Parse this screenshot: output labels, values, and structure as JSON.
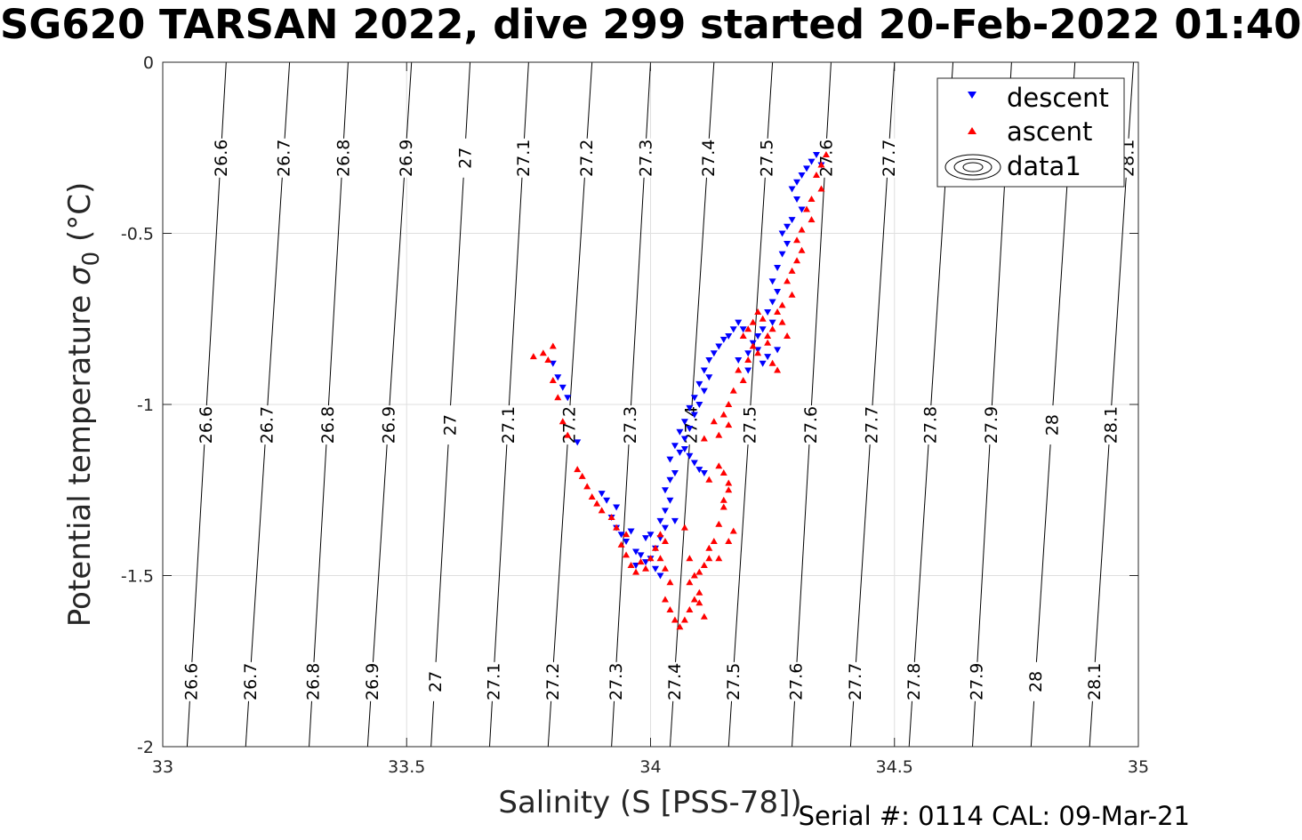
{
  "chart_data": {
    "type": "scatter",
    "title": "SG620 TARSAN 2022, dive 299 started 20-Feb-2022 01:40",
    "xlabel": "Salinity (S [PSS-78])",
    "ylabel": "Potential temperature",
    "ylabel_symbol": "σ",
    "ylabel_subscript": "0",
    "ylabel_unit": "(°C)",
    "footer": "Serial #: 0114  CAL: 09-Mar-21",
    "xlim": [
      33,
      35
    ],
    "ylim": [
      -2,
      0
    ],
    "xticks": [
      33,
      33.5,
      34,
      34.5,
      35
    ],
    "xtick_labels": [
      "33",
      "33.5",
      "34",
      "34.5",
      "35"
    ],
    "yticks": [
      0,
      -0.5,
      -1,
      -1.5,
      -2
    ],
    "ytick_labels": [
      "0",
      "-0.5",
      "-1",
      "-1.5",
      "-2"
    ],
    "grid": true,
    "legend": {
      "placement": "top-right",
      "entries": [
        {
          "label": "descent",
          "marker": "triangle-down",
          "color": "#0000ff"
        },
        {
          "label": "ascent",
          "marker": "triangle-up",
          "color": "#ff0000"
        },
        {
          "label": "data1",
          "marker": "contour",
          "color": "#000000"
        }
      ]
    },
    "density_contours": {
      "levels": [
        "26.6",
        "26.7",
        "26.8",
        "26.9",
        "27",
        "27.1",
        "27.2",
        "27.3",
        "27.4",
        "27.5",
        "27.6",
        "27.7",
        "27.8",
        "27.9",
        "28",
        "28.1"
      ],
      "bottom_x": [
        33.05,
        33.17,
        33.3,
        33.42,
        33.55,
        33.67,
        33.79,
        33.92,
        34.04,
        34.16,
        34.29,
        34.41,
        34.53,
        34.66,
        34.78,
        34.9
      ],
      "top_x": [
        33.13,
        33.26,
        33.38,
        33.51,
        33.63,
        33.75,
        33.88,
        34.0,
        34.13,
        34.25,
        34.37,
        34.5,
        34.62,
        34.74,
        34.87,
        34.99
      ],
      "label_rows_y": [
        -0.28,
        -1.06,
        -1.81
      ],
      "top_row_levels": [
        "26.6",
        "26.7",
        "26.8",
        "26.9",
        "27",
        "27.1",
        "27.2",
        "27.3",
        "27.4",
        "27.5",
        "27.6",
        "27.7",
        "28.1"
      ]
    },
    "series": [
      {
        "name": "descent",
        "color": "#0000ff",
        "marker": "triangle-down",
        "points": [
          [
            34.34,
            -0.27
          ],
          [
            34.33,
            -0.29
          ],
          [
            34.32,
            -0.31
          ],
          [
            34.31,
            -0.33
          ],
          [
            34.35,
            -0.3
          ],
          [
            34.3,
            -0.35
          ],
          [
            34.29,
            -0.37
          ],
          [
            34.3,
            -0.4
          ],
          [
            34.31,
            -0.43
          ],
          [
            34.29,
            -0.46
          ],
          [
            34.28,
            -0.48
          ],
          [
            34.27,
            -0.5
          ],
          [
            34.28,
            -0.53
          ],
          [
            34.27,
            -0.56
          ],
          [
            34.26,
            -0.6
          ],
          [
            34.25,
            -0.64
          ],
          [
            34.26,
            -0.67
          ],
          [
            34.25,
            -0.7
          ],
          [
            34.24,
            -0.73
          ],
          [
            34.25,
            -0.76
          ],
          [
            34.23,
            -0.78
          ],
          [
            34.22,
            -0.8
          ],
          [
            34.21,
            -0.82
          ],
          [
            34.22,
            -0.84
          ],
          [
            34.2,
            -0.85
          ],
          [
            34.19,
            -0.78
          ],
          [
            34.18,
            -0.76
          ],
          [
            34.17,
            -0.78
          ],
          [
            34.16,
            -0.8
          ],
          [
            34.15,
            -0.81
          ],
          [
            34.14,
            -0.83
          ],
          [
            34.13,
            -0.85
          ],
          [
            34.12,
            -0.87
          ],
          [
            34.11,
            -0.9
          ],
          [
            34.12,
            -0.92
          ],
          [
            34.1,
            -0.94
          ],
          [
            34.11,
            -0.96
          ],
          [
            34.09,
            -0.98
          ],
          [
            34.1,
            -1.0
          ],
          [
            34.08,
            -1.01
          ],
          [
            34.09,
            -1.03
          ],
          [
            34.07,
            -1.05
          ],
          [
            34.08,
            -1.07
          ],
          [
            34.06,
            -1.08
          ],
          [
            34.07,
            -1.1
          ],
          [
            34.05,
            -1.12
          ],
          [
            34.06,
            -1.14
          ],
          [
            34.04,
            -1.16
          ],
          [
            34.05,
            -1.2
          ],
          [
            34.04,
            -1.22
          ],
          [
            34.03,
            -1.25
          ],
          [
            34.04,
            -1.28
          ],
          [
            34.03,
            -1.31
          ],
          [
            34.02,
            -1.34
          ],
          [
            34.03,
            -1.36
          ],
          [
            34.02,
            -1.39
          ],
          [
            34.01,
            -1.42
          ],
          [
            34.0,
            -1.45
          ],
          [
            34.01,
            -1.48
          ],
          [
            34.02,
            -1.5
          ],
          [
            33.99,
            -1.46
          ],
          [
            33.97,
            -1.43
          ],
          [
            33.95,
            -1.4
          ],
          [
            33.96,
            -1.37
          ],
          [
            33.94,
            -1.38
          ],
          [
            33.93,
            -1.36
          ],
          [
            33.92,
            -1.33
          ],
          [
            33.93,
            -1.3
          ],
          [
            33.91,
            -1.28
          ],
          [
            33.9,
            -1.26
          ],
          [
            33.85,
            -1.11
          ],
          [
            33.83,
            -0.98
          ],
          [
            33.82,
            -0.95
          ],
          [
            33.81,
            -0.92
          ],
          [
            33.8,
            -0.88
          ],
          [
            34.07,
            -1.13
          ],
          [
            34.08,
            -1.15
          ],
          [
            34.09,
            -1.17
          ],
          [
            34.1,
            -1.19
          ],
          [
            34.11,
            -1.2
          ],
          [
            34.18,
            -0.87
          ],
          [
            34.2,
            -0.9
          ],
          [
            34.23,
            -0.88
          ],
          [
            34.24,
            -0.86
          ],
          [
            34.26,
            -0.84
          ],
          [
            33.99,
            -1.39
          ],
          [
            33.98,
            -1.44
          ],
          [
            33.97,
            -1.47
          ],
          [
            34.0,
            -1.38
          ],
          [
            34.05,
            -1.34
          ]
        ]
      },
      {
        "name": "ascent",
        "color": "#ff0000",
        "marker": "triangle-up",
        "points": [
          [
            34.36,
            -0.27
          ],
          [
            34.35,
            -0.3
          ],
          [
            34.34,
            -0.33
          ],
          [
            34.35,
            -0.37
          ],
          [
            34.33,
            -0.4
          ],
          [
            34.32,
            -0.43
          ],
          [
            34.33,
            -0.46
          ],
          [
            34.31,
            -0.49
          ],
          [
            34.3,
            -0.52
          ],
          [
            34.31,
            -0.55
          ],
          [
            34.3,
            -0.58
          ],
          [
            34.29,
            -0.61
          ],
          [
            34.28,
            -0.64
          ],
          [
            34.29,
            -0.68
          ],
          [
            34.27,
            -0.71
          ],
          [
            34.26,
            -0.73
          ],
          [
            34.27,
            -0.76
          ],
          [
            34.25,
            -0.78
          ],
          [
            34.24,
            -0.8
          ],
          [
            34.23,
            -0.75
          ],
          [
            34.22,
            -0.73
          ],
          [
            34.21,
            -0.76
          ],
          [
            34.2,
            -0.78
          ],
          [
            34.19,
            -0.8
          ],
          [
            34.21,
            -0.83
          ],
          [
            34.2,
            -0.87
          ],
          [
            34.18,
            -0.9
          ],
          [
            34.19,
            -0.93
          ],
          [
            34.17,
            -0.96
          ],
          [
            34.16,
            -1.0
          ],
          [
            34.15,
            -1.03
          ],
          [
            34.16,
            -1.06
          ],
          [
            34.14,
            -1.09
          ],
          [
            34.15,
            -1.2
          ],
          [
            34.16,
            -1.25
          ],
          [
            34.15,
            -1.28
          ],
          [
            34.14,
            -1.35
          ],
          [
            34.13,
            -1.4
          ],
          [
            34.12,
            -1.45
          ],
          [
            34.11,
            -1.47
          ],
          [
            34.1,
            -1.49
          ],
          [
            34.09,
            -1.5
          ],
          [
            34.08,
            -1.52
          ],
          [
            34.09,
            -1.57
          ],
          [
            34.08,
            -1.6
          ],
          [
            34.07,
            -1.63
          ],
          [
            34.06,
            -1.65
          ],
          [
            34.05,
            -1.63
          ],
          [
            34.04,
            -1.6
          ],
          [
            34.03,
            -1.57
          ],
          [
            34.04,
            -1.52
          ],
          [
            34.03,
            -1.48
          ],
          [
            34.02,
            -1.45
          ],
          [
            34.03,
            -1.4
          ],
          [
            34.02,
            -1.38
          ],
          [
            34.01,
            -1.42
          ],
          [
            34.0,
            -1.45
          ],
          [
            33.99,
            -1.48
          ],
          [
            33.98,
            -1.46
          ],
          [
            33.97,
            -1.49
          ],
          [
            33.96,
            -1.47
          ],
          [
            33.95,
            -1.44
          ],
          [
            33.94,
            -1.41
          ],
          [
            33.95,
            -1.38
          ],
          [
            33.93,
            -1.36
          ],
          [
            33.92,
            -1.33
          ],
          [
            33.9,
            -1.31
          ],
          [
            33.89,
            -1.29
          ],
          [
            33.88,
            -1.27
          ],
          [
            33.87,
            -1.24
          ],
          [
            33.86,
            -1.21
          ],
          [
            33.85,
            -1.19
          ],
          [
            33.83,
            -1.09
          ],
          [
            33.82,
            -1.05
          ],
          [
            33.81,
            -0.98
          ],
          [
            33.8,
            -0.93
          ],
          [
            33.79,
            -0.87
          ],
          [
            33.78,
            -0.85
          ],
          [
            33.76,
            -0.86
          ],
          [
            33.8,
            -0.83
          ],
          [
            34.12,
            -1.42
          ],
          [
            34.14,
            -1.45
          ],
          [
            34.16,
            -1.4
          ],
          [
            34.17,
            -1.37
          ],
          [
            34.15,
            -1.3
          ],
          [
            34.07,
            -1.36
          ],
          [
            34.08,
            -1.45
          ],
          [
            34.1,
            -1.55
          ],
          [
            34.11,
            -1.62
          ],
          [
            34.1,
            -1.58
          ],
          [
            34.13,
            -1.05
          ],
          [
            34.11,
            -1.1
          ],
          [
            34.14,
            -1.18
          ],
          [
            34.12,
            -1.22
          ],
          [
            34.16,
            -1.23
          ],
          [
            34.22,
            -0.85
          ],
          [
            34.24,
            -0.82
          ],
          [
            34.25,
            -0.88
          ],
          [
            34.26,
            -0.9
          ],
          [
            34.28,
            -0.8
          ]
        ]
      }
    ]
  }
}
